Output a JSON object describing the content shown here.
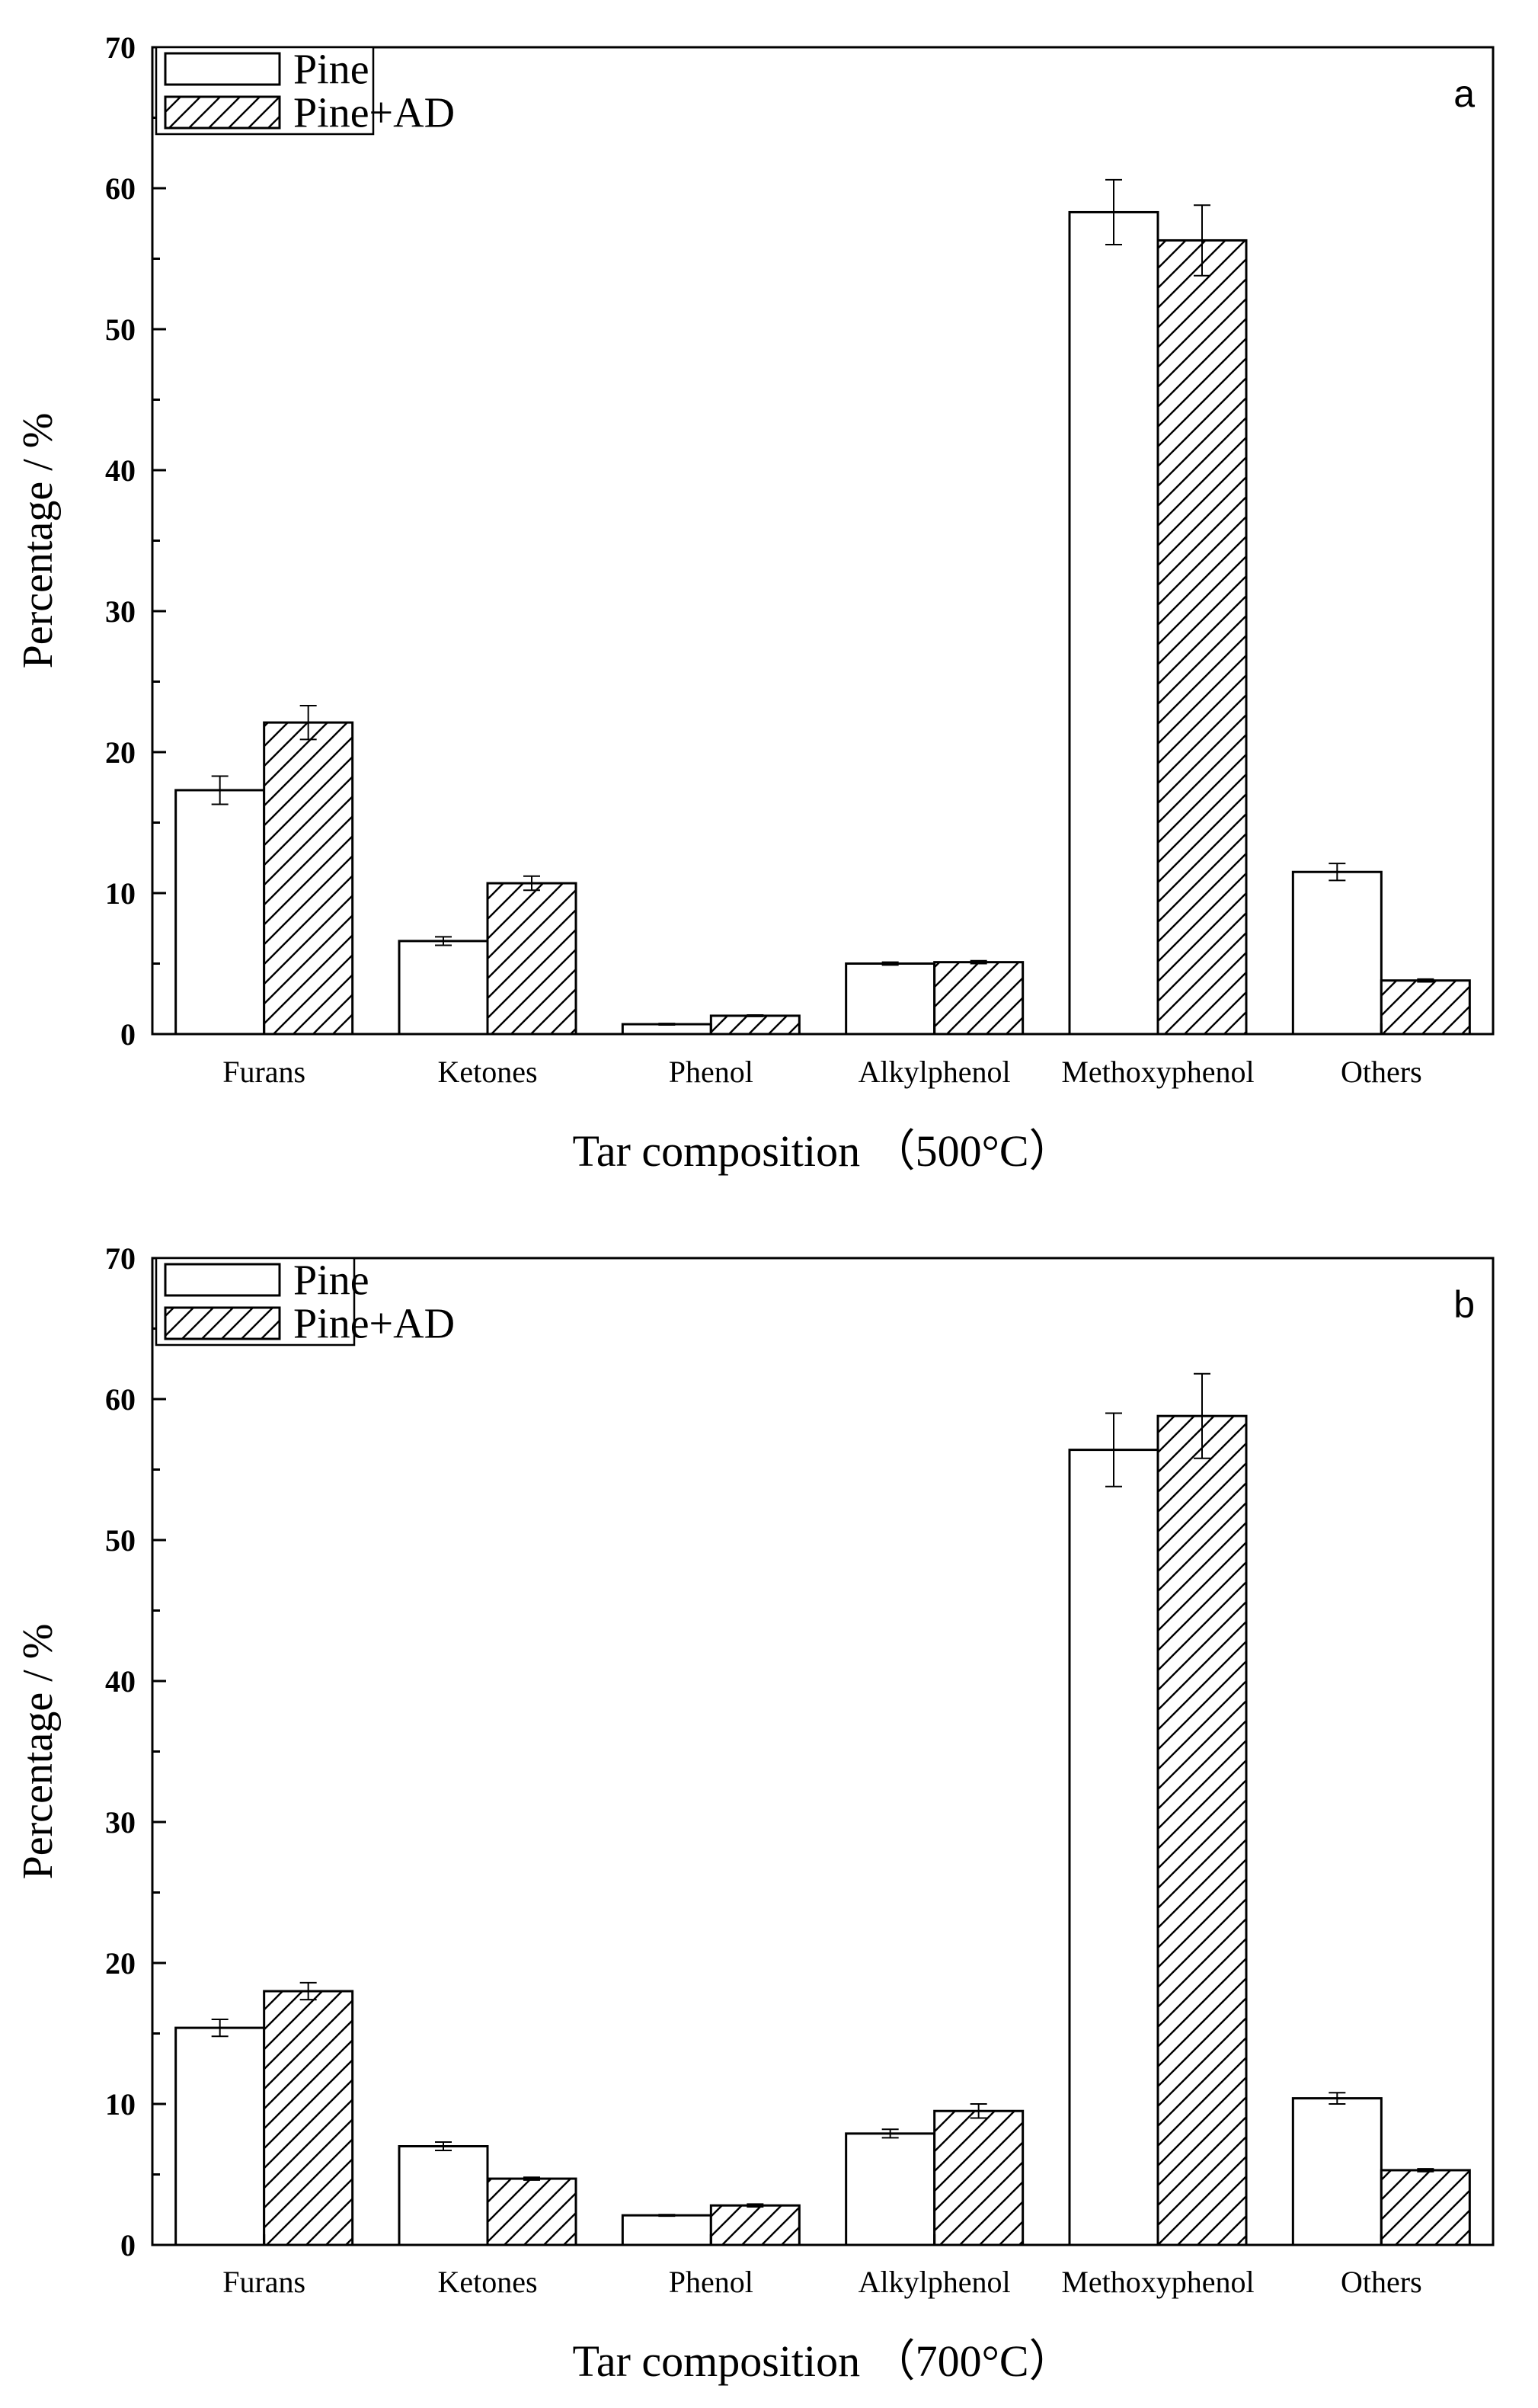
{
  "chart_data": [
    {
      "panel": "a",
      "type": "bar",
      "panel_label": "a",
      "xlabel": "Tar composition （500°C）",
      "ylabel": "Percentage / %",
      "ylim": [
        0,
        70
      ],
      "yticks": [
        0,
        10,
        20,
        30,
        40,
        50,
        60,
        70
      ],
      "legend_position": "top-left",
      "categories": [
        "Furans",
        "Ketones",
        "Phenol",
        "Alkylphenol",
        "Methoxyphenol",
        "Others"
      ],
      "series": [
        {
          "name": "Pine",
          "fill": "none",
          "values": [
            17.3,
            6.6,
            0.7,
            5.0,
            58.3,
            11.5
          ],
          "errors": [
            1.0,
            0.3,
            0.05,
            0.1,
            2.3,
            0.6
          ]
        },
        {
          "name": "Pine+AD",
          "fill": "hatch",
          "values": [
            22.1,
            10.7,
            1.3,
            5.1,
            56.3,
            3.8
          ],
          "errors": [
            1.2,
            0.5,
            0.05,
            0.1,
            2.5,
            0.1
          ]
        }
      ]
    },
    {
      "panel": "b",
      "type": "bar",
      "panel_label": "b",
      "xlabel": "Tar composition （700°C）",
      "ylabel": "Percentage / %",
      "ylim": [
        0,
        70
      ],
      "yticks": [
        0,
        10,
        20,
        30,
        40,
        50,
        60,
        70
      ],
      "legend_position": "top-left",
      "categories": [
        "Furans",
        "Ketones",
        "Phenol",
        "Alkylphenol",
        "Methoxyphenol",
        "Others"
      ],
      "series": [
        {
          "name": "Pine",
          "fill": "none",
          "values": [
            15.4,
            7.0,
            2.1,
            7.9,
            56.4,
            10.4
          ],
          "errors": [
            0.6,
            0.3,
            0.05,
            0.3,
            2.6,
            0.4
          ]
        },
        {
          "name": "Pine+AD",
          "fill": "hatch",
          "values": [
            18.0,
            4.7,
            2.8,
            9.5,
            58.8,
            5.3
          ],
          "errors": [
            0.6,
            0.1,
            0.1,
            0.5,
            3.0,
            0.1
          ]
        }
      ]
    }
  ],
  "colors": {
    "axis": "#000000",
    "bar_fill": "#ffffff",
    "hatch": "#000000"
  }
}
